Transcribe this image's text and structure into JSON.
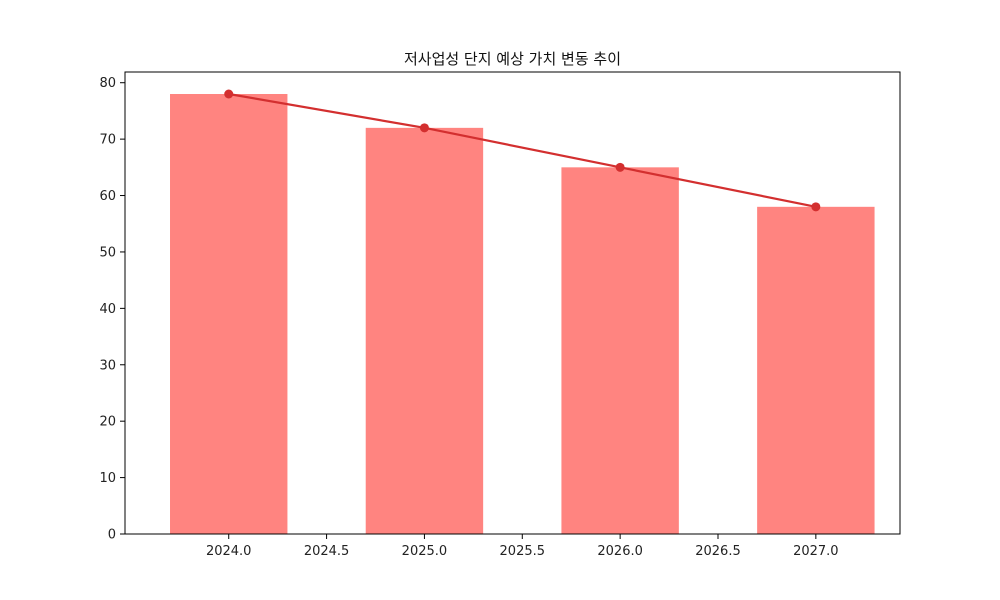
{
  "chart_data": {
    "type": "bar",
    "title": "저사업성 단지 예상 가치 변동 추이",
    "xlabel": "",
    "ylabel": "",
    "x": [
      2024,
      2025,
      2026,
      2027
    ],
    "values": [
      78,
      72,
      65,
      58
    ],
    "bar_width": 0.6,
    "overlay_line": {
      "x": [
        2024,
        2025,
        2026,
        2027
      ],
      "values": [
        78,
        72,
        65,
        58
      ]
    },
    "xlim": [
      2023.47,
      2027.43
    ],
    "ylim": [
      0,
      81.9
    ],
    "xticks": [
      "2024.0",
      "2024.5",
      "2025.0",
      "2025.5",
      "2026.0",
      "2026.5",
      "2027.0"
    ],
    "yticks": [
      "0",
      "10",
      "20",
      "30",
      "40",
      "50",
      "60",
      "70",
      "80"
    ],
    "grid": false,
    "legend": "none",
    "colors": {
      "bar": "#ff8480",
      "line": "#d32f2f",
      "marker": "#d32f2f",
      "axis": "#000000"
    }
  }
}
